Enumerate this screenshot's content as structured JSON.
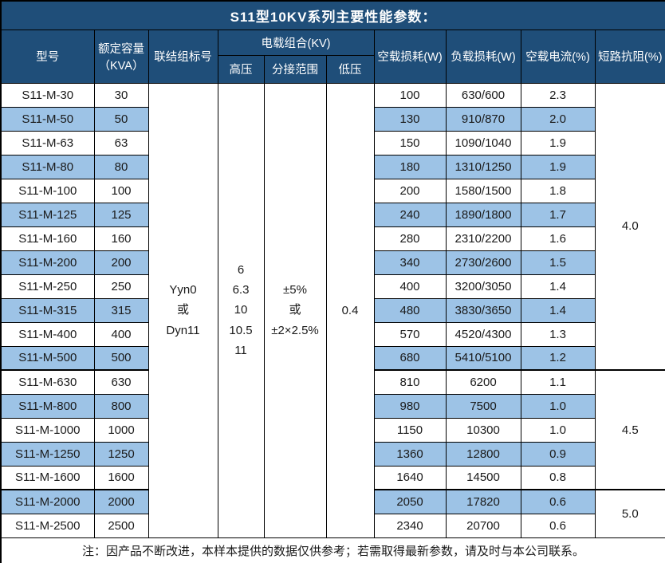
{
  "title": "S11型10KV系列主要性能参数：",
  "colors": {
    "header_bg": "#1F4E79",
    "alt_row_bg": "#9DC3E6",
    "border": "#000000",
    "header_text": "#FFFFFF"
  },
  "table": {
    "headers": {
      "model": "型号",
      "capacity_line1": "额定容量",
      "capacity_line2": "（KVA）",
      "connection": "联结组标号",
      "voltage_group": "电载组合(KV)",
      "hv": "高压",
      "tap_range": "分接范围",
      "lv": "低压",
      "no_load_loss": "空载损耗(W)",
      "load_loss": "负载损耗(W)",
      "no_load_current": "空载电流(%)",
      "impedance": "短路抗阻(%)"
    },
    "merged": {
      "connection_lines": [
        "Yyn0",
        "或",
        "Dyn11"
      ],
      "hv_lines": [
        "6",
        "6.3",
        "10",
        "10.5",
        "11"
      ],
      "tap_lines": [
        "±5%",
        "或",
        "±2×2.5%"
      ],
      "lv": "0.4"
    },
    "impedance_groups": [
      {
        "value": "4.0",
        "rows": 12
      },
      {
        "value": "4.5",
        "rows": 5
      },
      {
        "value": "5.0",
        "rows": 2
      }
    ],
    "rows": [
      {
        "model": "S11-M-30",
        "capacity": "30",
        "no_load_loss": "100",
        "load_loss": "630/600",
        "no_load_current": "2.3"
      },
      {
        "model": "S11-M-50",
        "capacity": "50",
        "no_load_loss": "130",
        "load_loss": "910/870",
        "no_load_current": "2.0"
      },
      {
        "model": "S11-M-63",
        "capacity": "63",
        "no_load_loss": "150",
        "load_loss": "1090/1040",
        "no_load_current": "1.9"
      },
      {
        "model": "S11-M-80",
        "capacity": "80",
        "no_load_loss": "180",
        "load_loss": "1310/1250",
        "no_load_current": "1.9"
      },
      {
        "model": "S11-M-100",
        "capacity": "100",
        "no_load_loss": "200",
        "load_loss": "1580/1500",
        "no_load_current": "1.8"
      },
      {
        "model": "S11-M-125",
        "capacity": "125",
        "no_load_loss": "240",
        "load_loss": "1890/1800",
        "no_load_current": "1.7"
      },
      {
        "model": "S11-M-160",
        "capacity": "160",
        "no_load_loss": "280",
        "load_loss": "2310/2200",
        "no_load_current": "1.6"
      },
      {
        "model": "S11-M-200",
        "capacity": "200",
        "no_load_loss": "340",
        "load_loss": "2730/2600",
        "no_load_current": "1.5"
      },
      {
        "model": "S11-M-250",
        "capacity": "250",
        "no_load_loss": "400",
        "load_loss": "3200/3050",
        "no_load_current": "1.4"
      },
      {
        "model": "S11-M-315",
        "capacity": "315",
        "no_load_loss": "480",
        "load_loss": "3830/3650",
        "no_load_current": "1.4"
      },
      {
        "model": "S11-M-400",
        "capacity": "400",
        "no_load_loss": "570",
        "load_loss": "4520/4300",
        "no_load_current": "1.3"
      },
      {
        "model": "S11-M-500",
        "capacity": "500",
        "no_load_loss": "680",
        "load_loss": "5410/5100",
        "no_load_current": "1.2"
      },
      {
        "model": "S11-M-630",
        "capacity": "630",
        "no_load_loss": "810",
        "load_loss": "6200",
        "no_load_current": "1.1"
      },
      {
        "model": "S11-M-800",
        "capacity": "800",
        "no_load_loss": "980",
        "load_loss": "7500",
        "no_load_current": "1.0"
      },
      {
        "model": "S11-M-1000",
        "capacity": "1000",
        "no_load_loss": "1150",
        "load_loss": "10300",
        "no_load_current": "1.0"
      },
      {
        "model": "S11-M-1250",
        "capacity": "1250",
        "no_load_loss": "1360",
        "load_loss": "12800",
        "no_load_current": "0.9"
      },
      {
        "model": "S11-M-1600",
        "capacity": "1600",
        "no_load_loss": "1640",
        "load_loss": "14500",
        "no_load_current": "0.8"
      },
      {
        "model": "S11-M-2000",
        "capacity": "2000",
        "no_load_loss": "2050",
        "load_loss": "17820",
        "no_load_current": "0.6"
      },
      {
        "model": "S11-M-2500",
        "capacity": "2500",
        "no_load_loss": "2340",
        "load_loss": "20700",
        "no_load_current": "0.6"
      }
    ]
  },
  "note": "注：因产品不断改进，本样本提供的数据仅供参考；若需取得最新参数，请及时与本公司联系。"
}
